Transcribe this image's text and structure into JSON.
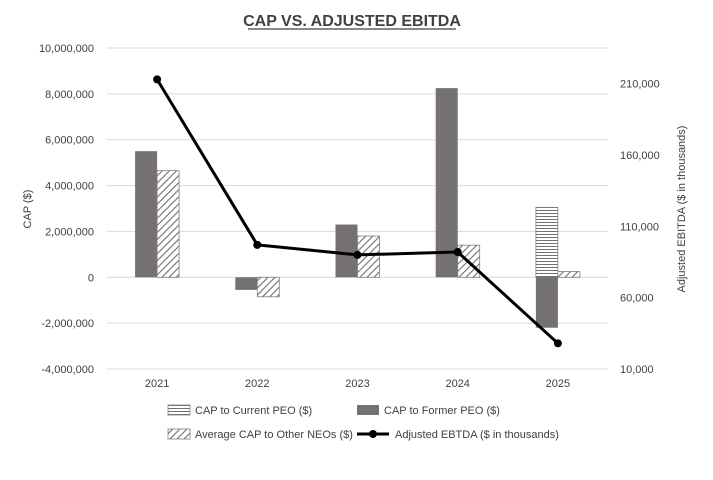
{
  "chart_data": {
    "type": "bar+line",
    "title": "CAP VS. ADJUSTED EBITDA",
    "categories": [
      "2021",
      "2022",
      "2023",
      "2024",
      "2025"
    ],
    "y_left": {
      "label": "CAP ($)",
      "min": -4000000,
      "max": 10000000,
      "step": 2000000,
      "tick_labels": [
        "-4,000,000",
        "-2,000,000",
        "0",
        "2,000,000",
        "4,000,000",
        "6,000,000",
        "8,000,000",
        "10,000,000"
      ]
    },
    "y_right": {
      "label": "Adjusted EBITDA ($ in thousands)",
      "min": 10000,
      "max": 235000,
      "ticks": [
        10000,
        60000,
        110000,
        160000,
        210000
      ],
      "tick_labels": [
        "10,000",
        "60,000",
        "110,000",
        "160,000",
        "210,000"
      ]
    },
    "series": [
      {
        "name": "CAP to Current PEO ($)",
        "kind": "bar",
        "pattern": "horizontal",
        "axis": "left",
        "slot": 0,
        "values": [
          null,
          null,
          null,
          null,
          3050000
        ]
      },
      {
        "name": "CAP to Former PEO ($)",
        "kind": "bar",
        "pattern": "solid",
        "axis": "left",
        "slot": 0,
        "values": [
          5500000,
          -550000,
          2300000,
          8250000,
          -2200000
        ]
      },
      {
        "name": "Average CAP to Other NEOs ($)",
        "kind": "bar",
        "pattern": "diagonal",
        "axis": "left",
        "slot": 1,
        "values": [
          4650000,
          -850000,
          1800000,
          1400000,
          250000
        ]
      },
      {
        "name": "Adjusted EBTDA ($ in thousands)",
        "kind": "line",
        "axis": "right",
        "values": [
          213000,
          97000,
          90000,
          92000,
          28000
        ]
      }
    ],
    "legend_position": "bottom",
    "grid": true
  }
}
